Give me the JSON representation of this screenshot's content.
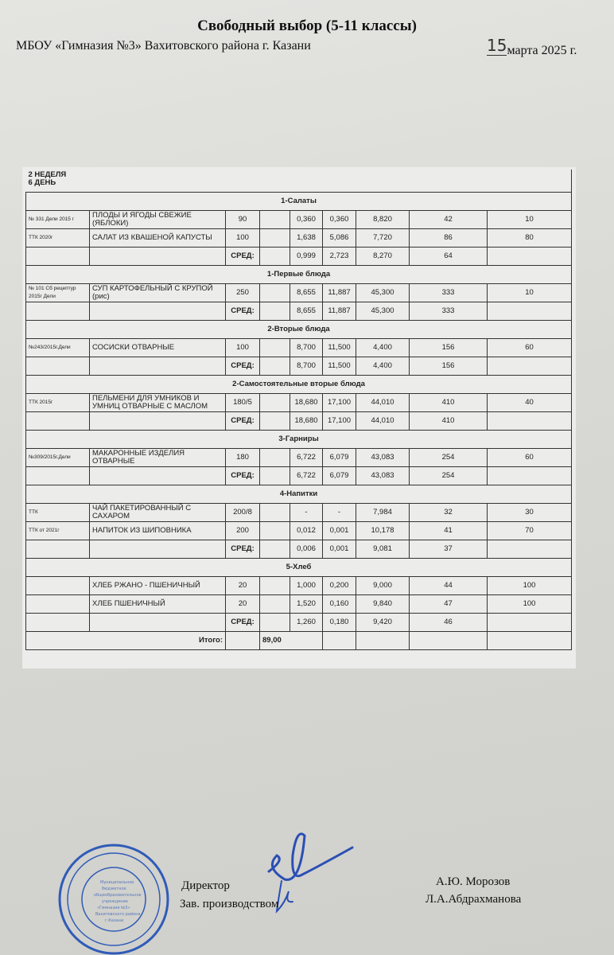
{
  "header": {
    "title": "Свободный выбор (5-11 классы)",
    "school": "МБОУ «Гимназия №3» Вахитовского района г. Казани",
    "date_day": "15",
    "date_rest": "марта 2025 г."
  },
  "menu": {
    "week": "2 НЕДЕЛЯ",
    "day": "6 ДЕНЬ",
    "sections": [
      {
        "title": "1-Салаты",
        "items": [
          {
            "code": "№ 331 Дели 2015 г",
            "name": "ПЛОДЫ И ЯГОДЫ СВЕЖИЕ (ЯБЛОКИ)",
            "weight": "90",
            "protein": "0,360",
            "fat": "0,360",
            "carbs": "8,820",
            "kcal": "42",
            "price": "10"
          },
          {
            "code": "ТТК 2020г",
            "name": "САЛАТ ИЗ КВАШЕНОЙ КАПУСТЫ",
            "weight": "100",
            "protein": "1,638",
            "fat": "5,086",
            "carbs": "7,720",
            "kcal": "86",
            "price": "80"
          }
        ],
        "avg": {
          "label": "СРЕД:",
          "protein": "0,999",
          "fat": "2,723",
          "carbs": "8,270",
          "kcal": "64"
        }
      },
      {
        "title": "1-Первые блюда",
        "items": [
          {
            "code": "№ 101 Сб рецептур 2015г Дели",
            "name": "СУП КАРТОФЕЛЬНЫЙ С КРУПОЙ (рис)",
            "weight": "250",
            "protein": "8,655",
            "fat": "11,887",
            "carbs": "45,300",
            "kcal": "333",
            "price": "10"
          }
        ],
        "avg": {
          "label": "СРЕД:",
          "protein": "8,655",
          "fat": "11,887",
          "carbs": "45,300",
          "kcal": "333"
        }
      },
      {
        "title": "2-Вторые блюда",
        "items": [
          {
            "code": "№243/2015г.Дели",
            "name": "СОСИСКИ ОТВАРНЫЕ",
            "weight": "100",
            "protein": "8,700",
            "fat": "11,500",
            "carbs": "4,400",
            "kcal": "156",
            "price": "60"
          }
        ],
        "avg": {
          "label": "СРЕД:",
          "protein": "8,700",
          "fat": "11,500",
          "carbs": "4,400",
          "kcal": "156"
        }
      },
      {
        "title": "2-Самостоятельные вторые блюда",
        "items": [
          {
            "code": "ТТК 2015г",
            "name": "ПЕЛЬМЕНИ ДЛЯ УМНИКОВ И УМНИЦ ОТВАРНЫЕ С МАСЛОМ",
            "weight": "180/5",
            "protein": "18,680",
            "fat": "17,100",
            "carbs": "44,010",
            "kcal": "410",
            "price": "40"
          }
        ],
        "avg": {
          "label": "СРЕД:",
          "protein": "18,680",
          "fat": "17,100",
          "carbs": "44,010",
          "kcal": "410"
        }
      },
      {
        "title": "3-Гарниры",
        "items": [
          {
            "code": "№309/2015г.Дели",
            "name": "МАКАРОННЫЕ ИЗДЕЛИЯ ОТВАРНЫЕ",
            "weight": "180",
            "protein": "6,722",
            "fat": "6,079",
            "carbs": "43,083",
            "kcal": "254",
            "price": "60"
          }
        ],
        "avg": {
          "label": "СРЕД:",
          "protein": "6,722",
          "fat": "6,079",
          "carbs": "43,083",
          "kcal": "254"
        }
      },
      {
        "title": "4-Напитки",
        "items": [
          {
            "code": "ТТК",
            "name": "ЧАЙ ПАКЕТИРОВАННЫЙ С САХАРОМ",
            "weight": "200/8",
            "protein": "-",
            "fat": "-",
            "carbs": "7,984",
            "kcal": "32",
            "price": "30"
          },
          {
            "code": "ТТК от 2021г",
            "name": "НАПИТОК ИЗ ШИПОВНИКА",
            "weight": "200",
            "protein": "0,012",
            "fat": "0,001",
            "carbs": "10,178",
            "kcal": "41",
            "price": "70"
          }
        ],
        "avg": {
          "label": "СРЕД:",
          "protein": "0,006",
          "fat": "0,001",
          "carbs": "9,081",
          "kcal": "37"
        }
      },
      {
        "title": "5-Хлеб",
        "items": [
          {
            "code": "",
            "name": "ХЛЕБ РЖАНО - ПШЕНИЧНЫЙ",
            "weight": "20",
            "protein": "1,000",
            "fat": "0,200",
            "carbs": "9,000",
            "kcal": "44",
            "price": "100"
          },
          {
            "code": "",
            "name": "ХЛЕБ ПШЕНИЧНЫЙ",
            "weight": "20",
            "protein": "1,520",
            "fat": "0,160",
            "carbs": "9,840",
            "kcal": "47",
            "price": "100"
          }
        ],
        "avg": {
          "label": "СРЕД:",
          "protein": "1,260",
          "fat": "0,180",
          "carbs": "9,420",
          "kcal": "46"
        }
      }
    ],
    "total_label": "Итого:",
    "total_value": "89,00"
  },
  "signatures": {
    "director_role": "Директор",
    "director_name": "А.Ю. Морозов",
    "production_role": "Зав. производством",
    "production_name": "Л.А.Абдрахманова"
  },
  "stamp_color": "#2f5bb8",
  "signature_color": "#2a4fb5"
}
